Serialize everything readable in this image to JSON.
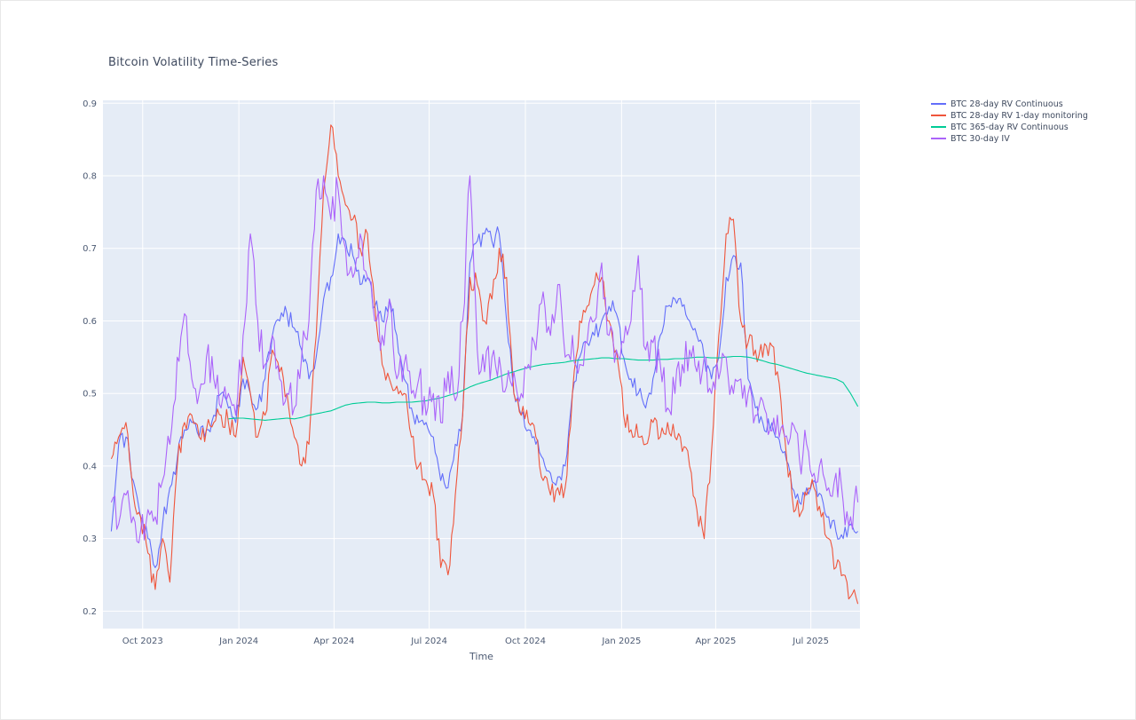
{
  "chart_data": {
    "type": "line",
    "title": "Bitcoin Volatility Time-Series",
    "xlabel": "Time",
    "ylabel": "",
    "plot_bgcolor": "#e5ecf6",
    "grid": true,
    "gridcolor": "#ffffff",
    "legend_position": "outside-top-right",
    "x_range": [
      "2023-08-24",
      "2025-08-17"
    ],
    "y_range": [
      0.176,
      0.904
    ],
    "y_ticks": [
      0.2,
      0.3,
      0.4,
      0.5,
      0.6,
      0.7,
      0.8,
      0.9
    ],
    "x_ticks": [
      {
        "date": "2023-10-01",
        "label": "Oct 2023"
      },
      {
        "date": "2024-01-01",
        "label": "Jan 2024"
      },
      {
        "date": "2024-04-01",
        "label": "Apr 2024"
      },
      {
        "date": "2024-07-01",
        "label": "Jul 2024"
      },
      {
        "date": "2024-10-01",
        "label": "Oct 2024"
      },
      {
        "date": "2025-01-01",
        "label": "Jan 2025"
      },
      {
        "date": "2025-04-01",
        "label": "Apr 2025"
      },
      {
        "date": "2025-07-01",
        "label": "Jul 2025"
      }
    ],
    "x": [
      "2023-09-01",
      "2023-09-08",
      "2023-09-15",
      "2023-09-22",
      "2023-09-29",
      "2023-10-06",
      "2023-10-13",
      "2023-10-20",
      "2023-10-27",
      "2023-11-03",
      "2023-11-10",
      "2023-11-17",
      "2023-11-24",
      "2023-12-01",
      "2023-12-08",
      "2023-12-15",
      "2023-12-22",
      "2023-12-29",
      "2024-01-05",
      "2024-01-12",
      "2024-01-19",
      "2024-01-26",
      "2024-02-02",
      "2024-02-09",
      "2024-02-16",
      "2024-02-23",
      "2024-03-01",
      "2024-03-08",
      "2024-03-15",
      "2024-03-22",
      "2024-03-29",
      "2024-04-05",
      "2024-04-12",
      "2024-04-19",
      "2024-04-26",
      "2024-05-03",
      "2024-05-10",
      "2024-05-17",
      "2024-05-24",
      "2024-05-31",
      "2024-06-07",
      "2024-06-14",
      "2024-06-21",
      "2024-06-28",
      "2024-07-05",
      "2024-07-12",
      "2024-07-19",
      "2024-07-26",
      "2024-08-02",
      "2024-08-09",
      "2024-08-16",
      "2024-08-23",
      "2024-08-30",
      "2024-09-06",
      "2024-09-13",
      "2024-09-20",
      "2024-09-27",
      "2024-10-04",
      "2024-10-11",
      "2024-10-18",
      "2024-10-25",
      "2024-11-01",
      "2024-11-08",
      "2024-11-15",
      "2024-11-22",
      "2024-11-29",
      "2024-12-06",
      "2024-12-13",
      "2024-12-20",
      "2024-12-27",
      "2025-01-03",
      "2025-01-10",
      "2025-01-17",
      "2025-01-24",
      "2025-01-31",
      "2025-02-07",
      "2025-02-14",
      "2025-02-21",
      "2025-02-28",
      "2025-03-07",
      "2025-03-14",
      "2025-03-21",
      "2025-03-28",
      "2025-04-04",
      "2025-04-11",
      "2025-04-18",
      "2025-04-25",
      "2025-05-02",
      "2025-05-09",
      "2025-05-16",
      "2025-05-23",
      "2025-05-30",
      "2025-06-06",
      "2025-06-13",
      "2025-06-20",
      "2025-06-27",
      "2025-07-04",
      "2025-07-11",
      "2025-07-18",
      "2025-07-25",
      "2025-08-01",
      "2025-08-08",
      "2025-08-15"
    ],
    "series": [
      {
        "name": "BTC 28-day RV Continuous",
        "color": "#636efa",
        "jitter": 0.013,
        "values": [
          0.31,
          0.43,
          0.44,
          0.38,
          0.33,
          0.3,
          0.26,
          0.32,
          0.37,
          0.41,
          0.45,
          0.46,
          0.44,
          0.45,
          0.47,
          0.5,
          0.48,
          0.46,
          0.52,
          0.5,
          0.48,
          0.52,
          0.58,
          0.6,
          0.61,
          0.59,
          0.56,
          0.52,
          0.55,
          0.63,
          0.66,
          0.72,
          0.71,
          0.69,
          0.65,
          0.66,
          0.62,
          0.6,
          0.63,
          0.58,
          0.52,
          0.48,
          0.46,
          0.46,
          0.44,
          0.38,
          0.37,
          0.43,
          0.47,
          0.68,
          0.71,
          0.72,
          0.71,
          0.72,
          0.6,
          0.5,
          0.47,
          0.45,
          0.43,
          0.41,
          0.39,
          0.385,
          0.4,
          0.5,
          0.55,
          0.57,
          0.58,
          0.6,
          0.62,
          0.61,
          0.55,
          0.52,
          0.5,
          0.48,
          0.52,
          0.58,
          0.62,
          0.63,
          0.62,
          0.6,
          0.58,
          0.55,
          0.52,
          0.55,
          0.66,
          0.69,
          0.68,
          0.52,
          0.48,
          0.46,
          0.45,
          0.44,
          0.42,
          0.37,
          0.35,
          0.37,
          0.38,
          0.36,
          0.33,
          0.31,
          0.3,
          0.32,
          0.31
        ]
      },
      {
        "name": "BTC 28-day RV 1-day monitoring",
        "color": "#ef553b",
        "jitter": 0.016,
        "values": [
          0.41,
          0.44,
          0.46,
          0.36,
          0.33,
          0.28,
          0.23,
          0.3,
          0.24,
          0.4,
          0.46,
          0.47,
          0.44,
          0.45,
          0.46,
          0.47,
          0.46,
          0.44,
          0.55,
          0.5,
          0.44,
          0.47,
          0.56,
          0.53,
          0.5,
          0.44,
          0.4,
          0.43,
          0.58,
          0.78,
          0.87,
          0.8,
          0.76,
          0.74,
          0.7,
          0.72,
          0.62,
          0.54,
          0.52,
          0.51,
          0.5,
          0.44,
          0.4,
          0.38,
          0.36,
          0.26,
          0.25,
          0.36,
          0.47,
          0.66,
          0.65,
          0.6,
          0.63,
          0.7,
          0.66,
          0.5,
          0.47,
          0.46,
          0.44,
          0.38,
          0.36,
          0.37,
          0.37,
          0.5,
          0.6,
          0.62,
          0.65,
          0.66,
          0.6,
          0.56,
          0.47,
          0.45,
          0.44,
          0.43,
          0.46,
          0.44,
          0.46,
          0.44,
          0.42,
          0.4,
          0.34,
          0.3,
          0.42,
          0.58,
          0.72,
          0.74,
          0.6,
          0.57,
          0.56,
          0.55,
          0.57,
          0.53,
          0.44,
          0.36,
          0.33,
          0.36,
          0.37,
          0.33,
          0.3,
          0.26,
          0.25,
          0.22,
          0.21
        ]
      },
      {
        "name": "BTC 365-day RV Continuous",
        "color": "#00cc96",
        "jitter": 0,
        "values": [
          null,
          null,
          null,
          null,
          null,
          null,
          null,
          null,
          null,
          null,
          null,
          null,
          null,
          null,
          null,
          null,
          0.465,
          0.466,
          0.466,
          0.465,
          0.464,
          0.463,
          0.464,
          0.465,
          0.466,
          0.465,
          0.467,
          0.47,
          0.472,
          0.474,
          0.476,
          0.48,
          0.484,
          0.486,
          0.487,
          0.488,
          0.488,
          0.487,
          0.487,
          0.488,
          0.488,
          0.488,
          0.489,
          0.49,
          0.492,
          0.494,
          0.497,
          0.5,
          0.504,
          0.509,
          0.513,
          0.516,
          0.519,
          0.523,
          0.527,
          0.53,
          0.533,
          0.536,
          0.538,
          0.54,
          0.541,
          0.542,
          0.543,
          0.545,
          0.546,
          0.547,
          0.548,
          0.549,
          0.549,
          0.548,
          0.548,
          0.547,
          0.546,
          0.546,
          0.546,
          0.547,
          0.547,
          0.548,
          0.548,
          0.549,
          0.55,
          0.55,
          0.549,
          0.549,
          0.55,
          0.551,
          0.551,
          0.55,
          0.548,
          0.545,
          0.542,
          0.54,
          0.537,
          0.534,
          0.531,
          0.528,
          0.526,
          0.524,
          0.522,
          0.52,
          0.515,
          0.5,
          0.482
        ]
      },
      {
        "name": "BTC 30-day IV",
        "color": "#ab63fa",
        "jitter": 0.028,
        "values": [
          0.35,
          0.32,
          0.36,
          0.33,
          0.31,
          0.34,
          0.33,
          0.38,
          0.43,
          0.55,
          0.61,
          0.52,
          0.5,
          0.55,
          0.52,
          0.48,
          0.5,
          0.47,
          0.58,
          0.72,
          0.6,
          0.54,
          0.58,
          0.52,
          0.5,
          0.48,
          0.55,
          0.6,
          0.78,
          0.8,
          0.74,
          0.78,
          0.7,
          0.66,
          0.72,
          0.66,
          0.6,
          0.58,
          0.63,
          0.52,
          0.54,
          0.5,
          0.52,
          0.47,
          0.5,
          0.46,
          0.53,
          0.49,
          0.6,
          0.8,
          0.56,
          0.53,
          0.55,
          0.55,
          0.51,
          0.53,
          0.5,
          0.54,
          0.56,
          0.64,
          0.58,
          0.65,
          0.55,
          0.58,
          0.54,
          0.57,
          0.6,
          0.68,
          0.58,
          0.56,
          0.57,
          0.6,
          0.69,
          0.56,
          0.57,
          0.54,
          0.48,
          0.5,
          0.54,
          0.56,
          0.53,
          0.55,
          0.5,
          0.52,
          0.55,
          0.5,
          0.52,
          0.5,
          0.47,
          0.49,
          0.45,
          0.47,
          0.44,
          0.46,
          0.41,
          0.43,
          0.39,
          0.41,
          0.37,
          0.39,
          0.35,
          0.33,
          0.35
        ]
      }
    ]
  }
}
